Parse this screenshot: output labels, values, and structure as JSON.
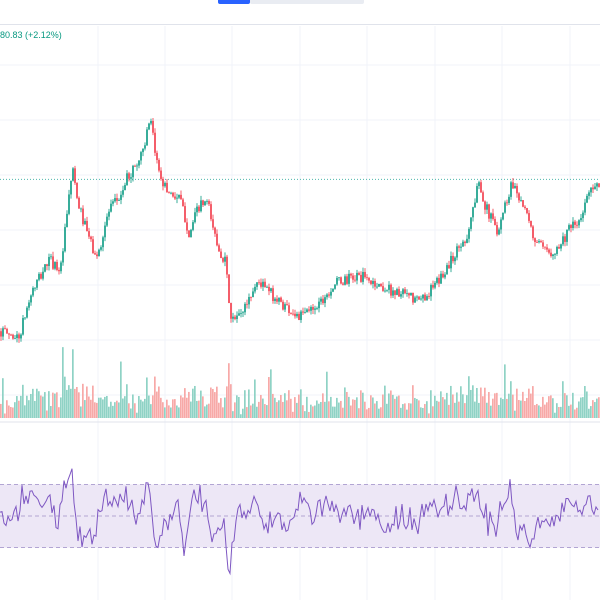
{
  "header": {
    "price_change": "80.83 (+2.12%)"
  },
  "colors": {
    "up": "#089981",
    "down": "#f23645",
    "volume_up": "#8fd2c5",
    "volume_down": "#f7a9a7",
    "rsi_line": "#7e57c2",
    "rsi_band": "#ede7f6",
    "grid": "#f0f3fa",
    "last_price_line": "#4db6ac"
  },
  "chart_data": [
    {
      "type": "candlestick",
      "panel": "price",
      "shape_keypoints": [
        [
          0,
          0.06
        ],
        [
          0.03,
          0.03
        ],
        [
          0.05,
          0.22
        ],
        [
          0.08,
          0.37
        ],
        [
          0.1,
          0.33
        ],
        [
          0.12,
          0.78
        ],
        [
          0.125,
          0.65
        ],
        [
          0.14,
          0.52
        ],
        [
          0.16,
          0.37
        ],
        [
          0.18,
          0.58
        ],
        [
          0.2,
          0.65
        ],
        [
          0.21,
          0.72
        ],
        [
          0.23,
          0.8
        ],
        [
          0.24,
          0.88
        ],
        [
          0.25,
          0.97
        ],
        [
          0.26,
          0.8
        ],
        [
          0.275,
          0.68
        ],
        [
          0.3,
          0.63
        ],
        [
          0.315,
          0.48
        ],
        [
          0.33,
          0.6
        ],
        [
          0.345,
          0.62
        ],
        [
          0.36,
          0.45
        ],
        [
          0.375,
          0.36
        ],
        [
          0.385,
          0.1
        ],
        [
          0.4,
          0.13
        ],
        [
          0.43,
          0.28
        ],
        [
          0.46,
          0.2
        ],
        [
          0.5,
          0.12
        ],
        [
          0.53,
          0.18
        ],
        [
          0.56,
          0.27
        ],
        [
          0.6,
          0.3
        ],
        [
          0.63,
          0.26
        ],
        [
          0.67,
          0.22
        ],
        [
          0.7,
          0.19
        ],
        [
          0.73,
          0.27
        ],
        [
          0.76,
          0.4
        ],
        [
          0.78,
          0.48
        ],
        [
          0.8,
          0.72
        ],
        [
          0.81,
          0.6
        ],
        [
          0.83,
          0.5
        ],
        [
          0.855,
          0.71
        ],
        [
          0.87,
          0.63
        ],
        [
          0.89,
          0.47
        ],
        [
          0.91,
          0.4
        ],
        [
          0.93,
          0.42
        ],
        [
          0.95,
          0.5
        ],
        [
          0.97,
          0.54
        ],
        [
          0.985,
          0.7
        ],
        [
          1.0,
          0.68
        ]
      ],
      "last_price_level": 0.72
    },
    {
      "type": "bar",
      "panel": "volume",
      "series": [
        {
          "name": "",
          "values": []
        }
      ]
    },
    {
      "type": "line",
      "panel": "rsi",
      "ylim": [
        0,
        100
      ],
      "bands": [
        30,
        50,
        70
      ],
      "series": [
        {
          "name": "",
          "values": []
        }
      ]
    }
  ]
}
